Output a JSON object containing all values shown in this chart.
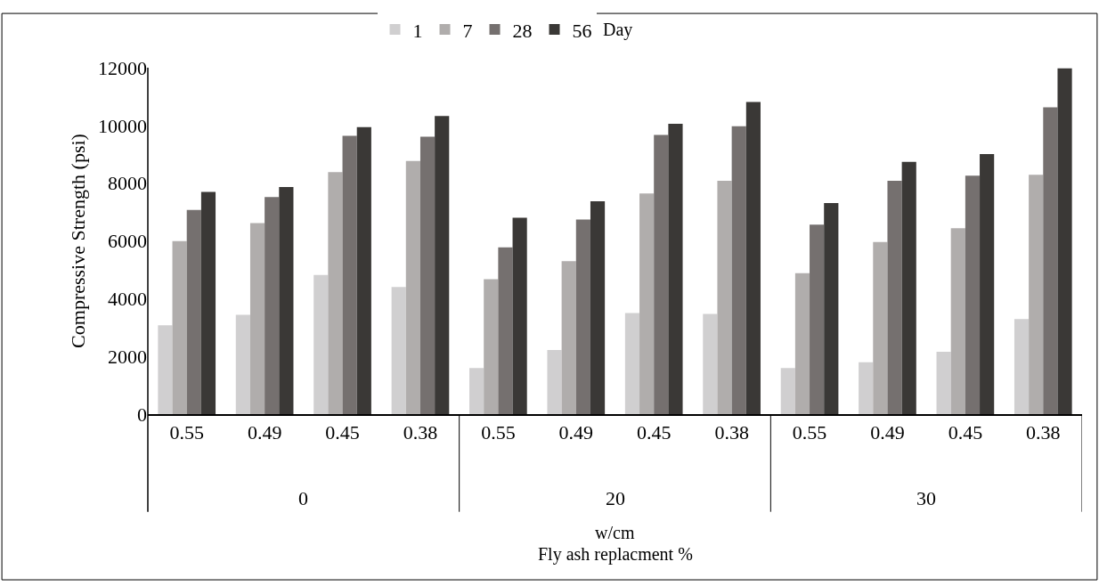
{
  "chart_data": {
    "type": "bar",
    "ylabel": "Compressive Strength (psi)",
    "xlabel": "w/cm",
    "legend_title": "Day",
    "legend": "top",
    "categories": [
      "0.55",
      "0.49",
      "0.45",
      "0.38",
      "0.55",
      "0.49",
      "0.45",
      "0.38",
      "0.55",
      "0.49",
      "0.45",
      "0.38"
    ],
    "annotations": [
      "0",
      "20",
      "30",
      "Fly ash replacment %"
    ],
    "ylim": [
      0,
      12000
    ],
    "yticks": [
      0,
      2000,
      4000,
      6000,
      8000,
      10000,
      12000
    ],
    "grid": false,
    "series": [
      {
        "name": "1",
        "color": "#d0cfd0",
        "values": [
          3080,
          3440,
          4820,
          4400,
          1600,
          2220,
          3500,
          3470,
          1600,
          1800,
          2160,
          3290
        ]
      },
      {
        "name": "7",
        "color": "#b0adac",
        "values": [
          5990,
          6620,
          8380,
          8770,
          4670,
          5300,
          7640,
          8080,
          4880,
          5960,
          6440,
          8290
        ]
      },
      {
        "name": "28",
        "color": "#75706f",
        "values": [
          7070,
          7520,
          9640,
          9610,
          5780,
          6740,
          9670,
          9970,
          6560,
          8080,
          8260,
          10630
        ]
      },
      {
        "name": "56",
        "color": "#3a3836",
        "values": [
          7700,
          7870,
          9940,
          10330,
          6800,
          7370,
          10060,
          10810,
          7310,
          8740,
          9010,
          11980
        ]
      }
    ]
  }
}
